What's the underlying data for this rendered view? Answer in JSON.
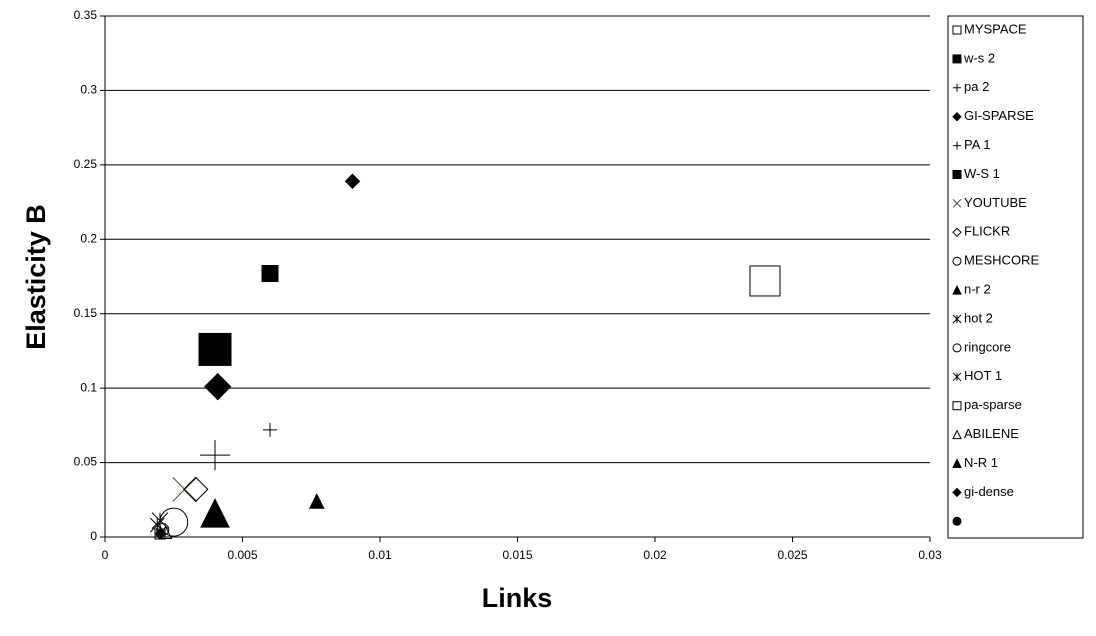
{
  "chart_data": {
    "type": "scatter",
    "x_label": "Links",
    "y_label": "Elasticity B",
    "xlim": [
      0,
      0.03
    ],
    "xticks": [
      0,
      0.005,
      0.01,
      0.015,
      0.02,
      0.025,
      0.03
    ],
    "ylim": [
      0,
      0.35
    ],
    "yticks": [
      0,
      0.05,
      0.1,
      0.15,
      0.2,
      0.25,
      0.3,
      0.35
    ],
    "grid": true,
    "legend": "right",
    "series": [
      {
        "name": "MYSPACE",
        "marker": "square",
        "filled": false,
        "color": "#000000",
        "x": [
          0.024
        ],
        "y": [
          0.172
        ]
      },
      {
        "name": "w-s 2",
        "marker": "square",
        "filled": true,
        "color": "#000000",
        "x": [
          0.006
        ],
        "y": [
          0.177
        ]
      },
      {
        "name": "pa 2",
        "marker": "plus",
        "filled": false,
        "color": "#000000",
        "x": [
          0.006
        ],
        "y": [
          0.072
        ]
      },
      {
        "name": "GI-SPARSE",
        "marker": "diamond",
        "filled": true,
        "color": "#000000",
        "x": [
          0.009
        ],
        "y": [
          0.239
        ]
      },
      {
        "name": "PA 1",
        "marker": "plus",
        "filled": false,
        "color": "#000000",
        "x": [
          0.004
        ],
        "y": [
          0.055
        ]
      },
      {
        "name": "W-S 1",
        "marker": "square",
        "filled": true,
        "color": "#000000",
        "x": [
          0.004
        ],
        "y": [
          0.126
        ]
      },
      {
        "name": "YOUTUBE",
        "marker": "x",
        "filled": false,
        "color": "#5a4a3a",
        "x": [
          0.0029
        ],
        "y": [
          0.032
        ]
      },
      {
        "name": "FLICKR",
        "marker": "diamond",
        "filled": false,
        "color": "#000000",
        "x": [
          0.0033
        ],
        "y": [
          0.032
        ]
      },
      {
        "name": "MESHCORE",
        "marker": "circle",
        "filled": false,
        "color": "#000000",
        "x": [
          0.0025
        ],
        "y": [
          0.01
        ]
      },
      {
        "name": "n-r 2",
        "marker": "triangle",
        "filled": true,
        "color": "#000000",
        "x": [
          0.0077
        ],
        "y": [
          0.024
        ]
      },
      {
        "name": "hot 2",
        "marker": "asterisk",
        "filled": false,
        "color": "#000000",
        "x": [
          0.0019
        ],
        "y": [
          0.008
        ]
      },
      {
        "name": "ringcore",
        "marker": "circle",
        "filled": false,
        "color": "#000000",
        "x": [
          0.0021
        ],
        "y": [
          0.005
        ]
      },
      {
        "name": "HOT 1",
        "marker": "asterisk",
        "filled": false,
        "color": "#000000",
        "x": [
          0.002
        ],
        "y": [
          0.011
        ]
      },
      {
        "name": "pa-sparse",
        "marker": "square",
        "filled": false,
        "color": "#000000",
        "x": [
          0.002
        ],
        "y": [
          0.002
        ]
      },
      {
        "name": "ABILENE",
        "marker": "triangle",
        "filled": false,
        "color": "#000000",
        "x": [
          0.0022
        ],
        "y": [
          0.003
        ]
      },
      {
        "name": "N-R 1",
        "marker": "triangle",
        "filled": true,
        "color": "#000000",
        "x": [
          0.004
        ],
        "y": [
          0.016
        ]
      },
      {
        "name": "gi-dense",
        "marker": "diamond",
        "filled": true,
        "color": "#000000",
        "x": [
          0.0041
        ],
        "y": [
          0.101
        ]
      },
      {
        "name": null,
        "marker": "circle",
        "filled": true,
        "color": "#000000",
        "x": [
          0.002
        ],
        "y": [
          0.002
        ]
      }
    ]
  }
}
